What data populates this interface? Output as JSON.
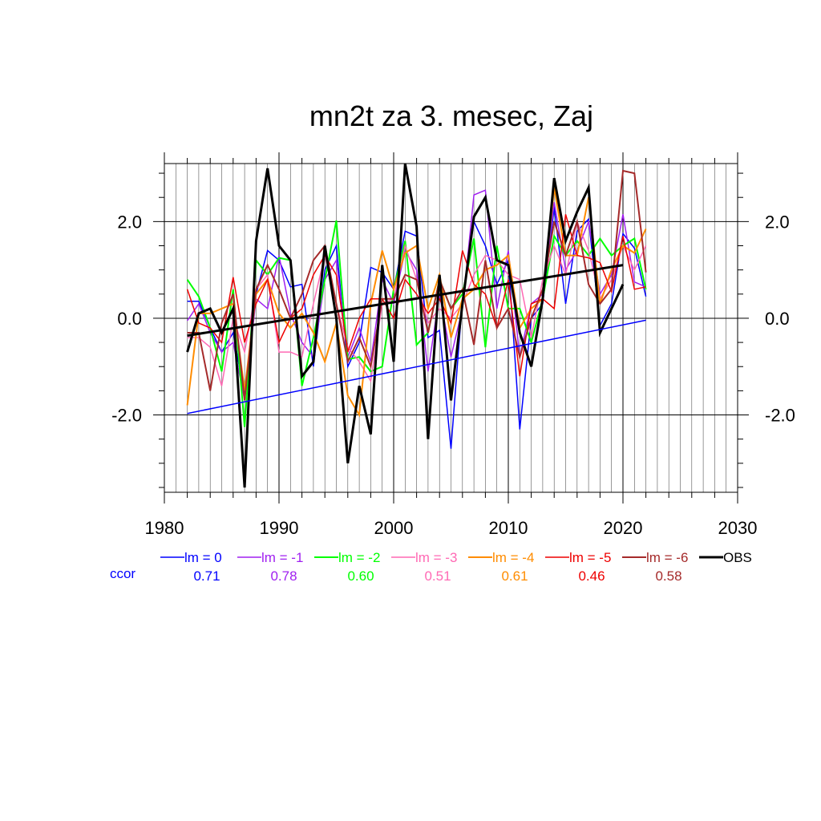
{
  "chart_data": {
    "type": "line",
    "title": "mn2t za 3. mesec, Zaj",
    "xlim": [
      1980,
      2030
    ],
    "ylim": [
      -3.6,
      3.2
    ],
    "x_ticks": [
      1980,
      1990,
      2000,
      2010,
      2020,
      2030
    ],
    "x_tick_labels": [
      "1980",
      "1990",
      "2000",
      "2010",
      "2020",
      "2030"
    ],
    "y_ticks": [
      -2,
      0,
      2
    ],
    "y_tick_labels": [
      "-2.0",
      "0.0",
      "2.0"
    ],
    "grid": true,
    "legend_position": "bottom",
    "ccor_label": "ccor",
    "x": [
      1982,
      1983,
      1984,
      1985,
      1986,
      1987,
      1988,
      1989,
      1990,
      1991,
      1992,
      1993,
      1994,
      1995,
      1996,
      1997,
      1998,
      1999,
      2000,
      2001,
      2002,
      2003,
      2004,
      2005,
      2006,
      2007,
      2008,
      2009,
      2010,
      2011,
      2012,
      2013,
      2014,
      2015,
      2016,
      2017,
      2018,
      2019,
      2020,
      2021,
      2022
    ],
    "series": [
      {
        "name": "lm = 0",
        "color": "#0000ff",
        "ccor": "0.71",
        "width": 1.5,
        "values": [
          0.35,
          0.35,
          -0.2,
          -0.7,
          -0.3,
          -1.6,
          0.5,
          1.4,
          1.2,
          0.65,
          0.7,
          -1.0,
          1.0,
          1.5,
          -1.0,
          -0.5,
          1.05,
          0.95,
          0.6,
          1.8,
          1.7,
          -0.4,
          -0.25,
          -2.7,
          0.4,
          2.0,
          1.5,
          0.7,
          1.2,
          -2.3,
          0.0,
          0.3,
          2.3,
          0.3,
          1.8,
          2.05,
          -0.15,
          0.3,
          1.75,
          1.45,
          0.45
        ]
      },
      {
        "name": "lm = -1",
        "color": "#a020f0",
        "ccor": "0.78",
        "width": 1.5,
        "values": [
          -0.05,
          0.3,
          -0.3,
          -0.7,
          -0.5,
          -1.7,
          0.4,
          0.2,
          1.3,
          0.1,
          -0.5,
          -0.8,
          0.8,
          1.2,
          -0.8,
          -0.2,
          -0.9,
          0.8,
          0.3,
          1.4,
          1.0,
          -1.1,
          0.5,
          -0.8,
          0.2,
          2.55,
          2.65,
          0.2,
          1.4,
          -0.8,
          0.3,
          0.5,
          2.4,
          1.0,
          1.4,
          2.0,
          0.5,
          0.9,
          2.15,
          0.75,
          0.65
        ]
      },
      {
        "name": "lm = -2",
        "color": "#00ff00",
        "ccor": "0.60",
        "width": 2,
        "values": [
          0.8,
          0.45,
          -0.2,
          -1.1,
          0.6,
          -2.25,
          1.2,
          0.9,
          1.25,
          1.2,
          -1.4,
          -0.4,
          0.8,
          2.02,
          -0.85,
          -0.8,
          -1.1,
          -1.0,
          0.6,
          1.6,
          -0.55,
          -0.3,
          0.8,
          0.2,
          0.5,
          1.65,
          -0.6,
          1.5,
          0.2,
          0.2,
          -0.5,
          0.4,
          1.7,
          1.3,
          1.6,
          1.3,
          1.65,
          1.3,
          1.5,
          1.65,
          0.6
        ]
      },
      {
        "name": "lm = -3",
        "color": "#ff69b4",
        "ccor": "0.51",
        "width": 1.5,
        "values": [
          -0.4,
          -0.4,
          -0.6,
          -1.4,
          0.0,
          -0.7,
          0.6,
          0.9,
          -0.7,
          -0.7,
          -0.8,
          0.3,
          1.3,
          0.3,
          -0.6,
          -0.9,
          -1.3,
          0.3,
          0.4,
          1.5,
          0.8,
          -0.1,
          0.2,
          0.0,
          0.3,
          0.9,
          1.3,
          1.2,
          0.9,
          0.8,
          -0.4,
          0.8,
          1.5,
          0.9,
          2.0,
          1.4,
          0.4,
          0.8,
          1.5,
          1.0,
          1.5
        ]
      },
      {
        "name": "lm = -4",
        "color": "#ff8c00",
        "ccor": "0.61",
        "width": 2,
        "values": [
          -1.8,
          0.1,
          0.1,
          0.2,
          0.3,
          -1.5,
          0.5,
          0.8,
          0.1,
          -0.2,
          0.1,
          -0.3,
          -0.9,
          -0.1,
          -1.6,
          -2.0,
          0.3,
          1.4,
          0.6,
          1.35,
          1.5,
          0.2,
          0.9,
          -0.4,
          0.4,
          0.6,
          1.0,
          1.1,
          1.3,
          -0.2,
          0.2,
          0.4,
          2.7,
          1.3,
          1.3,
          2.5,
          0.3,
          1.0,
          1.5,
          1.35,
          1.85
        ]
      },
      {
        "name": "lm = -5",
        "color": "#ee0000",
        "ccor": "0.46",
        "width": 1.5,
        "values": [
          0.6,
          -0.1,
          -0.2,
          -0.5,
          0.85,
          -0.5,
          0.3,
          0.8,
          -0.5,
          0.0,
          0.2,
          0.9,
          1.3,
          0.9,
          -0.7,
          0.0,
          0.4,
          0.4,
          0.0,
          0.8,
          0.5,
          0.1,
          0.4,
          -0.1,
          1.4,
          0.7,
          0.5,
          -0.2,
          0.8,
          -1.2,
          0.3,
          0.4,
          0.2,
          2.15,
          1.3,
          1.25,
          1.15,
          0.55,
          1.7,
          0.6,
          0.65
        ]
      },
      {
        "name": "lm = -6",
        "color": "#a52a2a",
        "ccor": "0.58",
        "width": 2,
        "values": [
          -0.3,
          -0.3,
          -1.5,
          -0.1,
          0.5,
          -1.7,
          0.6,
          1.1,
          0.6,
          0.0,
          0.5,
          1.2,
          1.5,
          0.3,
          -0.9,
          -0.4,
          -1.0,
          0.4,
          0.4,
          0.9,
          0.8,
          -0.3,
          0.8,
          0.2,
          0.6,
          -0.55,
          1.2,
          -0.2,
          0.2,
          -0.8,
          0.0,
          0.6,
          2.0,
          1.3,
          2.0,
          0.7,
          0.3,
          0.6,
          3.05,
          3.0,
          0.95
        ]
      },
      {
        "name": "OBS",
        "color": "#000000",
        "ccor": "",
        "width": 3,
        "values": [
          -0.7,
          0.1,
          0.2,
          -0.3,
          0.2,
          -3.5,
          1.6,
          3.1,
          1.5,
          1.2,
          -1.2,
          -0.9,
          1.5,
          0.0,
          -3.0,
          -1.4,
          -2.4,
          1.1,
          -0.9,
          3.2,
          1.9,
          -2.5,
          0.9,
          -1.7,
          0.3,
          2.1,
          2.5,
          1.2,
          1.1,
          -0.3,
          -1.0,
          0.4,
          2.9,
          1.6,
          2.2,
          2.7,
          -0.3,
          0.2,
          0.7,
          null,
          null
        ]
      }
    ],
    "trend_lines": [
      {
        "name": "lm = 0 trend",
        "color": "#0000ff",
        "width": 1.5,
        "x": [
          1982,
          2022
        ],
        "y": [
          -1.97,
          -0.04
        ]
      },
      {
        "name": "OBS trend",
        "color": "#000000",
        "width": 3,
        "x": [
          1982,
          2020
        ],
        "y": [
          -0.36,
          1.1
        ]
      }
    ]
  }
}
